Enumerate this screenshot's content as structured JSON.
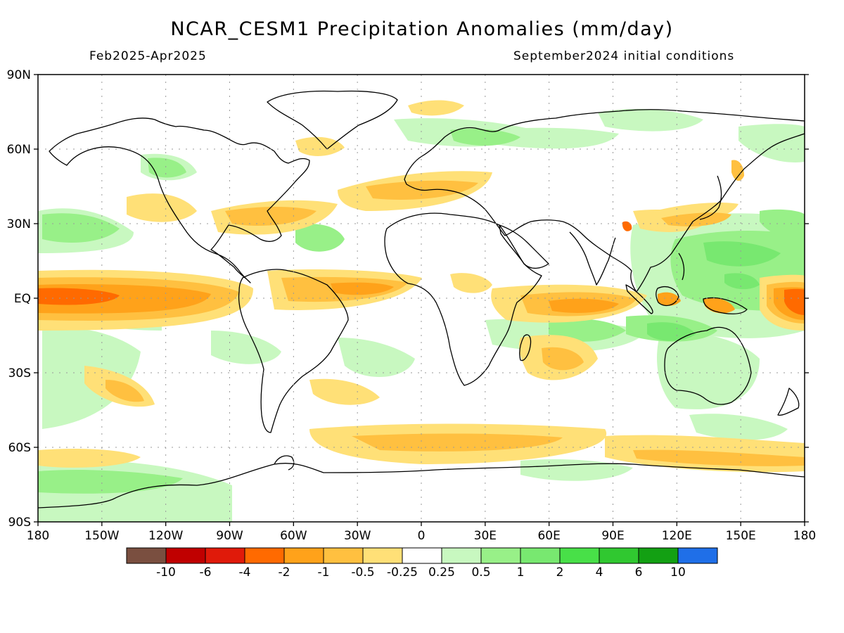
{
  "title": "NCAR_CESM1 Precipitation Anomalies (mm/day)",
  "period": "Feb2025-Apr2025",
  "initial_conditions": "September2024 initial conditions",
  "lat_labels": [
    "90N",
    "60N",
    "30N",
    "EQ",
    "30S",
    "60S",
    "90S"
  ],
  "lat_values": [
    90,
    60,
    30,
    0,
    -30,
    -60,
    -90
  ],
  "lon_labels": [
    "180",
    "150W",
    "120W",
    "90W",
    "60W",
    "30W",
    "0",
    "30E",
    "60E",
    "90E",
    "120E",
    "150E",
    "180"
  ],
  "lon_values": [
    -180,
    -150,
    -120,
    -90,
    -60,
    -30,
    0,
    30,
    60,
    90,
    120,
    150,
    180
  ],
  "colorbar": {
    "colors": [
      "#7a4f40",
      "#c00000",
      "#e01a0a",
      "#ff6a00",
      "#ffa21a",
      "#ffc040",
      "#ffe077",
      "#ffffff",
      "#c8f8c0",
      "#98f088",
      "#78e870",
      "#48e048",
      "#30c830",
      "#13a013",
      "#1f6fe8"
    ],
    "labels": [
      "-10",
      "-6",
      "-4",
      "-2",
      "-1",
      "-0.5",
      "-0.25",
      "0.25",
      "0.5",
      "1",
      "2",
      "4",
      "6",
      "10"
    ]
  },
  "colors": {
    "dry_weak": "#ffe077",
    "dry_moderate": "#ffc040",
    "dry_strong": "#ffa21a",
    "dry_very_strong": "#ff6a00",
    "wet_weak": "#c8f8c0",
    "wet_moderate": "#98f088",
    "wet_strong": "#78e870",
    "wet_very_strong": "#48e048"
  }
}
